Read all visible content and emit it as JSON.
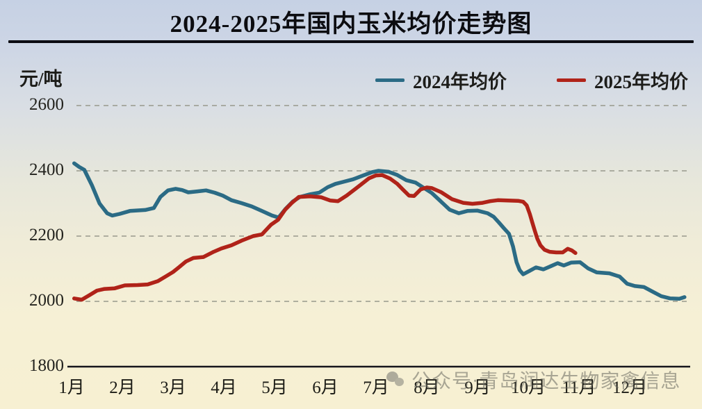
{
  "title": "2024-2025年国内玉米均价走势图",
  "y_axis": {
    "unit": "元/吨",
    "ticks": [
      2600,
      2400,
      2200,
      2000,
      1800
    ]
  },
  "x_axis": {
    "ticks": [
      "1月",
      "2月",
      "3月",
      "4月",
      "5月",
      "6月",
      "7月",
      "8月",
      "9月",
      "10月",
      "11月",
      "12月"
    ]
  },
  "legend": [
    {
      "label": "2024年均价",
      "color": "#2b6b85"
    },
    {
      "label": "2025年均价",
      "color": "#b02319"
    }
  ],
  "watermark": {
    "icon": "wechat-icon",
    "text": "公众号·青岛润达生物家禽信息"
  },
  "colors": {
    "series_2024": "#2b6b85",
    "series_2025": "#b02319",
    "gridline": "#98988c",
    "axis": "#15151a"
  },
  "chart_data": {
    "type": "line",
    "title": "2024-2025年国内玉米均价走势图",
    "xlabel": "",
    "ylabel": "元/吨",
    "ylim": [
      1800,
      2600
    ],
    "x_unit": "month number (1 = 1月 ... 12 = 12月)",
    "grid": "dashed horizontal",
    "legend_position": "top-right",
    "series": [
      {
        "name": "2024年均价",
        "color": "#2b6b85",
        "points": [
          [
            1.05,
            2423
          ],
          [
            1.15,
            2412
          ],
          [
            1.25,
            2403
          ],
          [
            1.4,
            2356
          ],
          [
            1.55,
            2300
          ],
          [
            1.7,
            2270
          ],
          [
            1.8,
            2263
          ],
          [
            1.95,
            2268
          ],
          [
            2.15,
            2277
          ],
          [
            2.45,
            2280
          ],
          [
            2.62,
            2286
          ],
          [
            2.75,
            2320
          ],
          [
            2.9,
            2340
          ],
          [
            3.05,
            2345
          ],
          [
            3.18,
            2341
          ],
          [
            3.3,
            2334
          ],
          [
            3.48,
            2337
          ],
          [
            3.65,
            2340
          ],
          [
            3.82,
            2333
          ],
          [
            3.98,
            2324
          ],
          [
            4.15,
            2310
          ],
          [
            4.35,
            2301
          ],
          [
            4.55,
            2291
          ],
          [
            4.75,
            2277
          ],
          [
            4.95,
            2263
          ],
          [
            5.08,
            2257
          ],
          [
            5.22,
            2284
          ],
          [
            5.36,
            2306
          ],
          [
            5.5,
            2320
          ],
          [
            5.7,
            2328
          ],
          [
            5.88,
            2333
          ],
          [
            6.05,
            2350
          ],
          [
            6.2,
            2360
          ],
          [
            6.35,
            2366
          ],
          [
            6.55,
            2374
          ],
          [
            6.75,
            2386
          ],
          [
            6.92,
            2396
          ],
          [
            7.05,
            2400
          ],
          [
            7.25,
            2397
          ],
          [
            7.42,
            2387
          ],
          [
            7.6,
            2371
          ],
          [
            7.78,
            2364
          ],
          [
            8.1,
            2332
          ],
          [
            8.28,
            2306
          ],
          [
            8.45,
            2281
          ],
          [
            8.63,
            2270
          ],
          [
            8.8,
            2277
          ],
          [
            9.0,
            2278
          ],
          [
            9.2,
            2270
          ],
          [
            9.32,
            2259
          ],
          [
            9.42,
            2242
          ],
          [
            9.52,
            2224
          ],
          [
            9.62,
            2207
          ],
          [
            9.7,
            2168
          ],
          [
            9.77,
            2120
          ],
          [
            9.83,
            2096
          ],
          [
            9.9,
            2083
          ],
          [
            10.02,
            2093
          ],
          [
            10.15,
            2104
          ],
          [
            10.3,
            2098
          ],
          [
            10.45,
            2108
          ],
          [
            10.58,
            2117
          ],
          [
            10.7,
            2110
          ],
          [
            10.85,
            2119
          ],
          [
            11.02,
            2120
          ],
          [
            11.18,
            2101
          ],
          [
            11.35,
            2089
          ],
          [
            11.6,
            2086
          ],
          [
            11.8,
            2076
          ],
          [
            11.95,
            2054
          ],
          [
            12.1,
            2047
          ],
          [
            12.28,
            2044
          ],
          [
            12.45,
            2030
          ],
          [
            12.62,
            2016
          ],
          [
            12.8,
            2009
          ],
          [
            12.98,
            2008
          ],
          [
            13.08,
            2013
          ]
        ]
      },
      {
        "name": "2025年均价",
        "color": "#b02319",
        "points": [
          [
            1.05,
            2009
          ],
          [
            1.2,
            2005
          ],
          [
            1.35,
            2019
          ],
          [
            1.5,
            2033
          ],
          [
            1.65,
            2038
          ],
          [
            1.85,
            2040
          ],
          [
            2.05,
            2049
          ],
          [
            2.3,
            2050
          ],
          [
            2.5,
            2052
          ],
          [
            2.7,
            2062
          ],
          [
            2.85,
            2076
          ],
          [
            3.0,
            2090
          ],
          [
            3.12,
            2105
          ],
          [
            3.25,
            2122
          ],
          [
            3.4,
            2133
          ],
          [
            3.6,
            2136
          ],
          [
            3.8,
            2152
          ],
          [
            3.95,
            2162
          ],
          [
            4.15,
            2172
          ],
          [
            4.35,
            2186
          ],
          [
            4.58,
            2200
          ],
          [
            4.75,
            2205
          ],
          [
            4.93,
            2235
          ],
          [
            5.07,
            2250
          ],
          [
            5.21,
            2281
          ],
          [
            5.35,
            2303
          ],
          [
            5.48,
            2320
          ],
          [
            5.7,
            2322
          ],
          [
            5.92,
            2319
          ],
          [
            6.1,
            2309
          ],
          [
            6.25,
            2307
          ],
          [
            6.42,
            2324
          ],
          [
            6.58,
            2343
          ],
          [
            6.72,
            2360
          ],
          [
            6.86,
            2377
          ],
          [
            7.0,
            2386
          ],
          [
            7.12,
            2387
          ],
          [
            7.28,
            2376
          ],
          [
            7.42,
            2360
          ],
          [
            7.52,
            2344
          ],
          [
            7.65,
            2324
          ],
          [
            7.75,
            2323
          ],
          [
            7.88,
            2343
          ],
          [
            8.0,
            2349
          ],
          [
            8.1,
            2347
          ],
          [
            8.28,
            2335
          ],
          [
            8.5,
            2313
          ],
          [
            8.72,
            2302
          ],
          [
            8.9,
            2299
          ],
          [
            9.1,
            2302
          ],
          [
            9.25,
            2307
          ],
          [
            9.4,
            2310
          ],
          [
            9.6,
            2309
          ],
          [
            9.8,
            2308
          ],
          [
            9.9,
            2305
          ],
          [
            9.97,
            2294
          ],
          [
            10.03,
            2268
          ],
          [
            10.08,
            2242
          ],
          [
            10.13,
            2216
          ],
          [
            10.18,
            2192
          ],
          [
            10.24,
            2172
          ],
          [
            10.32,
            2158
          ],
          [
            10.42,
            2152
          ],
          [
            10.55,
            2150
          ],
          [
            10.68,
            2150
          ],
          [
            10.78,
            2161
          ],
          [
            10.86,
            2156
          ],
          [
            10.93,
            2148
          ]
        ]
      }
    ]
  }
}
